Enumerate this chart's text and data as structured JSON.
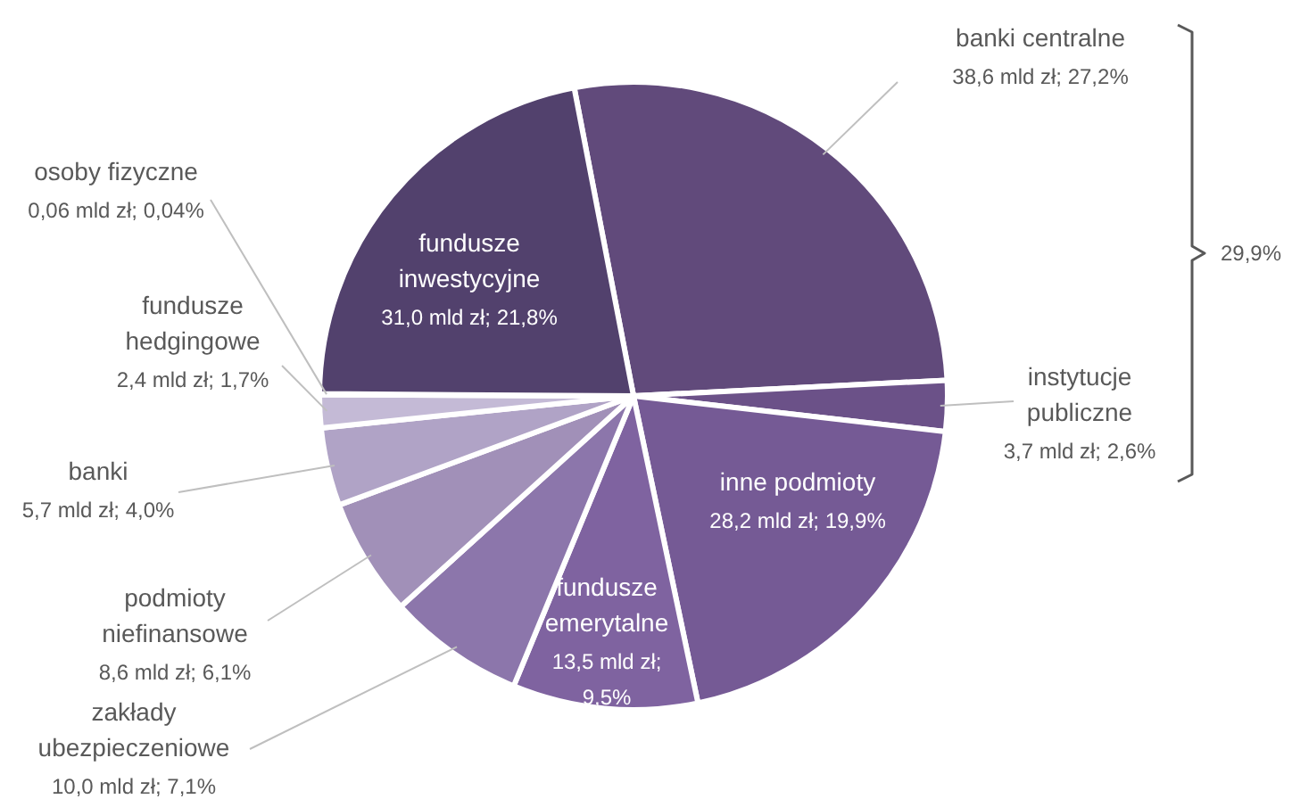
{
  "chart_data": {
    "type": "pie",
    "categories": [
      "banki centralne",
      "instytucje publiczne",
      "inne podmioty",
      "fundusze emerytalne",
      "zakłady ubezpieczeniowe",
      "podmioty niefinansowe",
      "banki",
      "fundusze hedgingowe",
      "osoby fizyczne",
      "fundusze inwestycyjne"
    ],
    "values": [
      38.6,
      3.7,
      28.2,
      13.5,
      10.0,
      8.6,
      5.7,
      2.4,
      0.06,
      31.0
    ],
    "colors": [
      "#614a7b",
      "#6b5188",
      "#755a95",
      "#7f63a0",
      "#8c76ab",
      "#a190b8",
      "#b0a3c6",
      "#c4bad6",
      "#d4cde2",
      "#52416d"
    ],
    "value_labels": [
      "38,6 mld zł; 27,2%",
      "3,7 mld zł; 2,6%",
      "28,2 mld zł; 19,9%",
      "13,5 mld zł; 9,5%",
      "10,0 mld zł; 7,1%",
      "8,6 mld zł; 6,1%",
      "5,7 mld zł; 4,0%",
      "2,4 mld zł; 1,7%",
      "0,06 mld zł; 0,04%",
      "31,0 mld zł; 21,8%"
    ],
    "annotations": [
      "29,9%"
    ]
  }
}
